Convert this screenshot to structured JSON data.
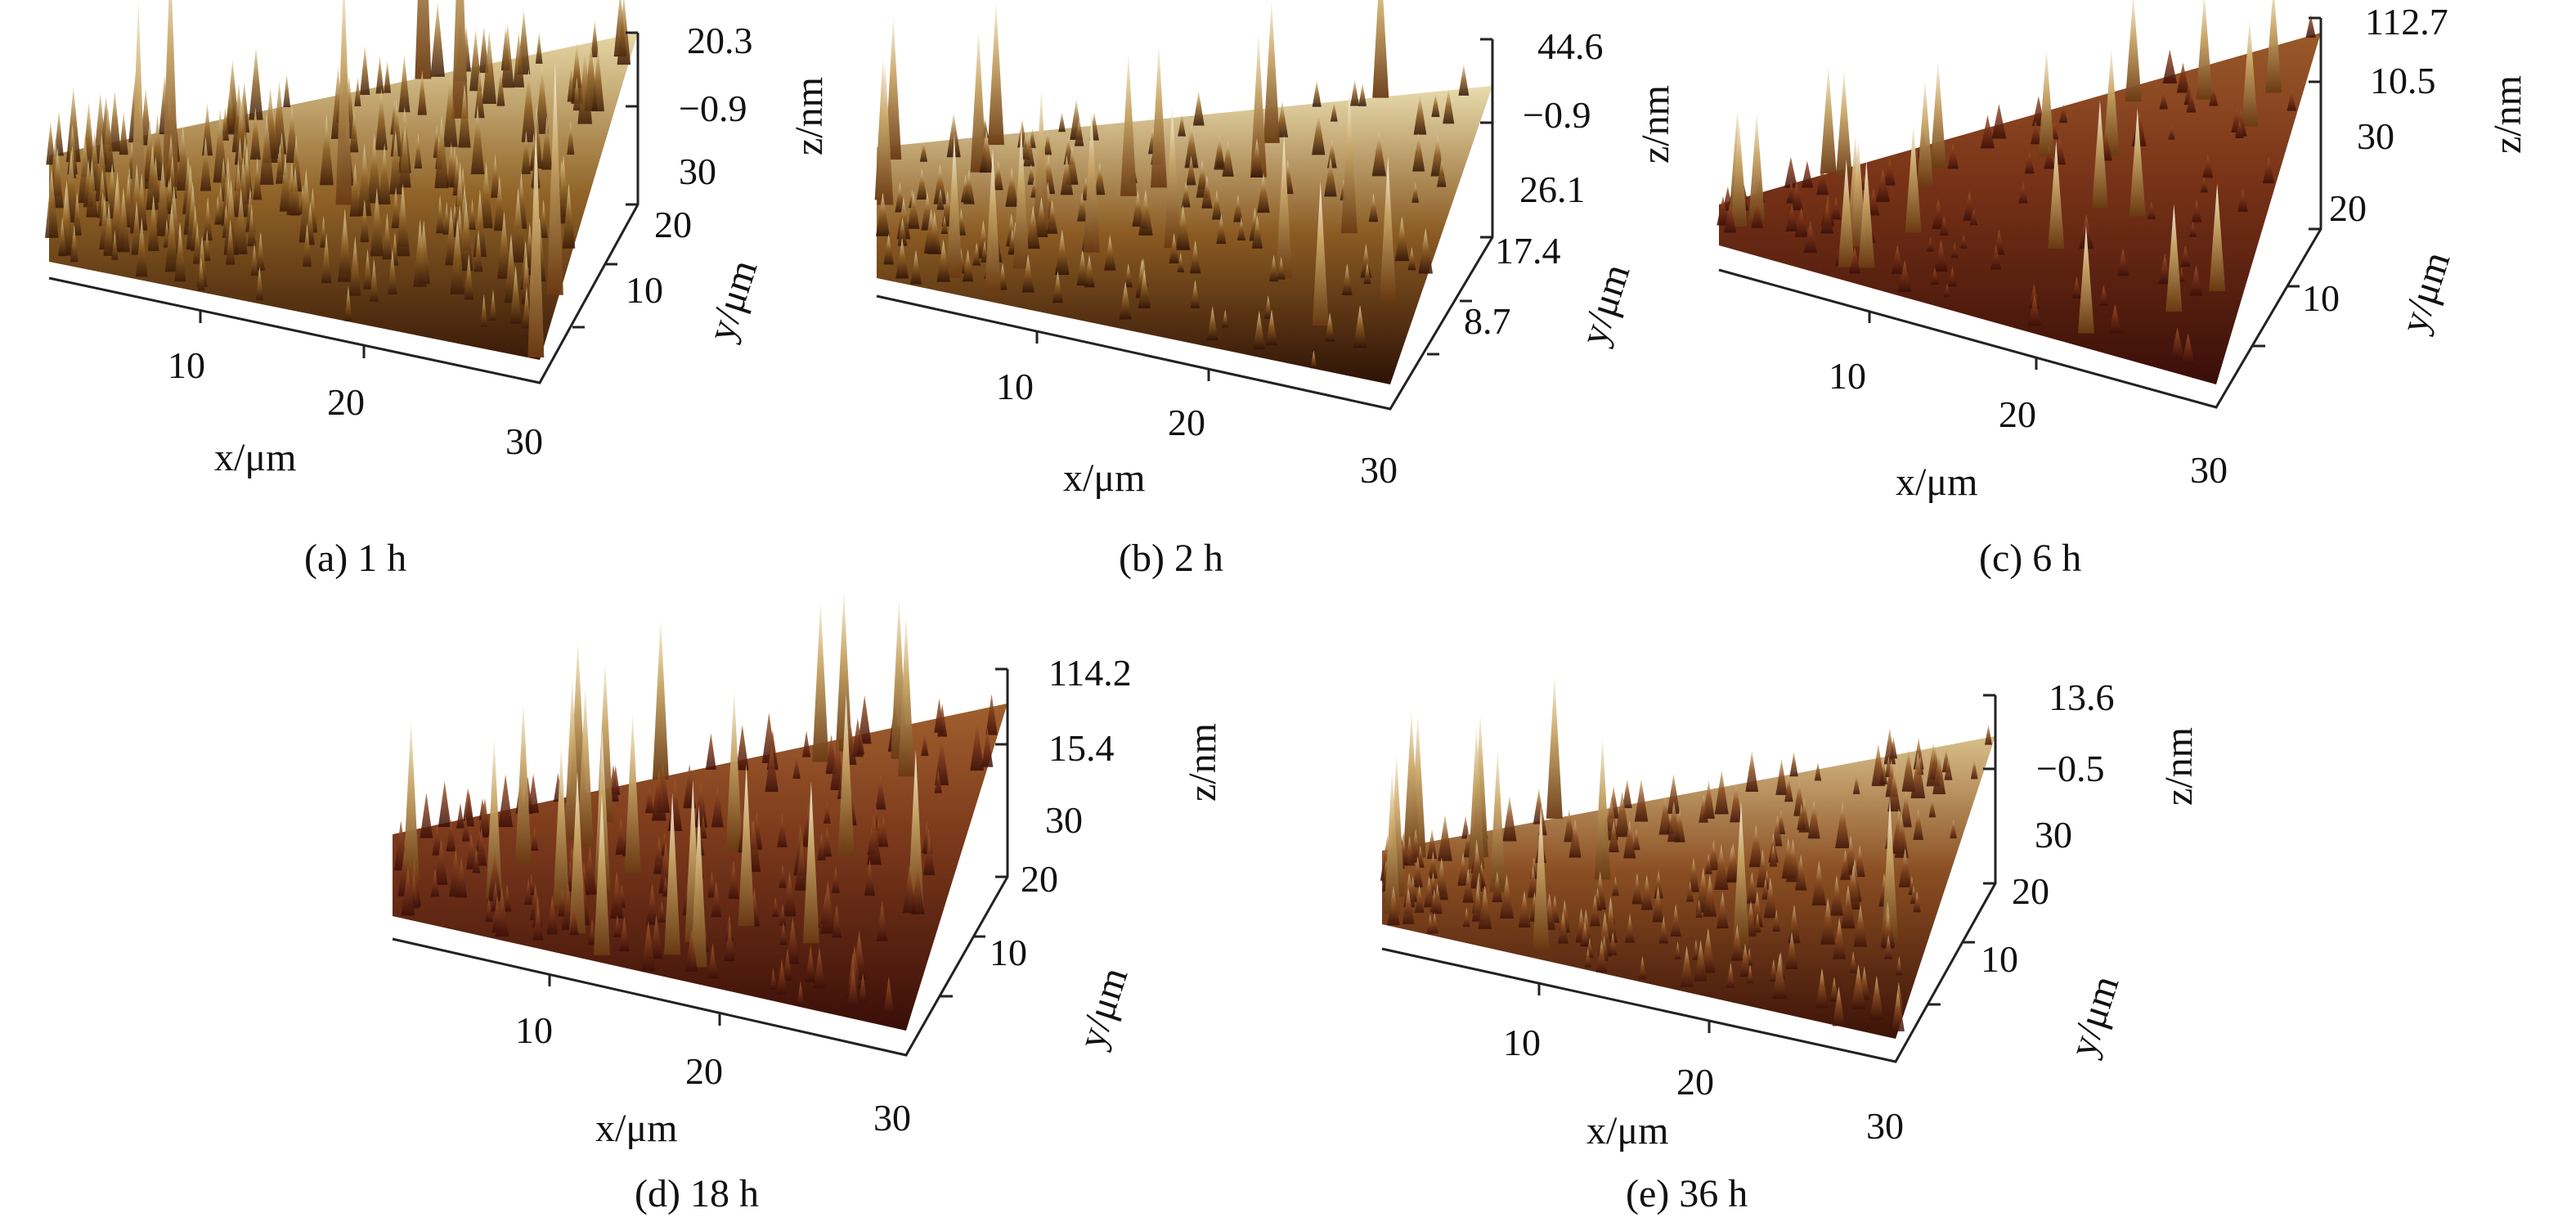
{
  "panels": [
    {
      "id": "a",
      "caption": "(a) 1 h",
      "x_ticks": [
        "10",
        "20",
        "30"
      ],
      "y_ticks": [
        "10",
        "20",
        "30"
      ],
      "z_ticks": [
        "20.3",
        "−0.9"
      ],
      "extra_ticks": [],
      "x_label": "x/μm",
      "y_label": "y/μm",
      "z_label": "z/nm",
      "colors": {
        "base": "#6b3a14",
        "mid": "#a87a3a",
        "peak": "#efe2b8"
      }
    },
    {
      "id": "b",
      "caption": "(b) 2 h",
      "x_ticks": [
        "10",
        "20",
        "30"
      ],
      "y_ticks": [
        "8.7",
        "17.4",
        "26.1"
      ],
      "z_ticks": [
        "44.6",
        "−0.9"
      ],
      "extra_ticks": [],
      "x_label": "x/μm",
      "y_label": "y/μm",
      "z_label": "z/nm",
      "colors": {
        "base": "#5e2a10",
        "mid": "#9b6b2a",
        "peak": "#f3ead0"
      }
    },
    {
      "id": "c",
      "caption": "(c) 6 h",
      "x_ticks": [
        "10",
        "20",
        "30"
      ],
      "y_ticks": [
        "10",
        "20",
        "30"
      ],
      "z_ticks": [
        "112.7",
        "10.5"
      ],
      "extra_ticks": [],
      "x_label": "x/μm",
      "y_label": "y/μm",
      "z_label": "z/nm",
      "colors": {
        "base": "#5a1e14",
        "mid": "#8a4a26",
        "peak": "#f0e4c4"
      }
    },
    {
      "id": "d",
      "caption": "(d) 18 h",
      "x_ticks": [
        "10",
        "20",
        "30"
      ],
      "y_ticks": [
        "10",
        "20",
        "30"
      ],
      "z_ticks": [
        "114.2",
        "15.4"
      ],
      "extra_ticks": [],
      "x_label": "x/μm",
      "y_label": "y/μm",
      "z_label": "z/nm",
      "colors": {
        "base": "#5c2014",
        "mid": "#8e4a24",
        "peak": "#f0e0b8"
      }
    },
    {
      "id": "e",
      "caption": "(e) 36 h",
      "x_ticks": [
        "10",
        "20",
        "30"
      ],
      "y_ticks": [
        "10",
        "20",
        "30"
      ],
      "z_ticks": [
        "13.6",
        "−0.5"
      ],
      "extra_ticks": [],
      "x_label": "x/μm",
      "y_label": "y/μm",
      "z_label": "z/nm",
      "colors": {
        "base": "#5c2216",
        "mid": "#9a6a2a",
        "peak": "#f4ecd4"
      }
    }
  ]
}
